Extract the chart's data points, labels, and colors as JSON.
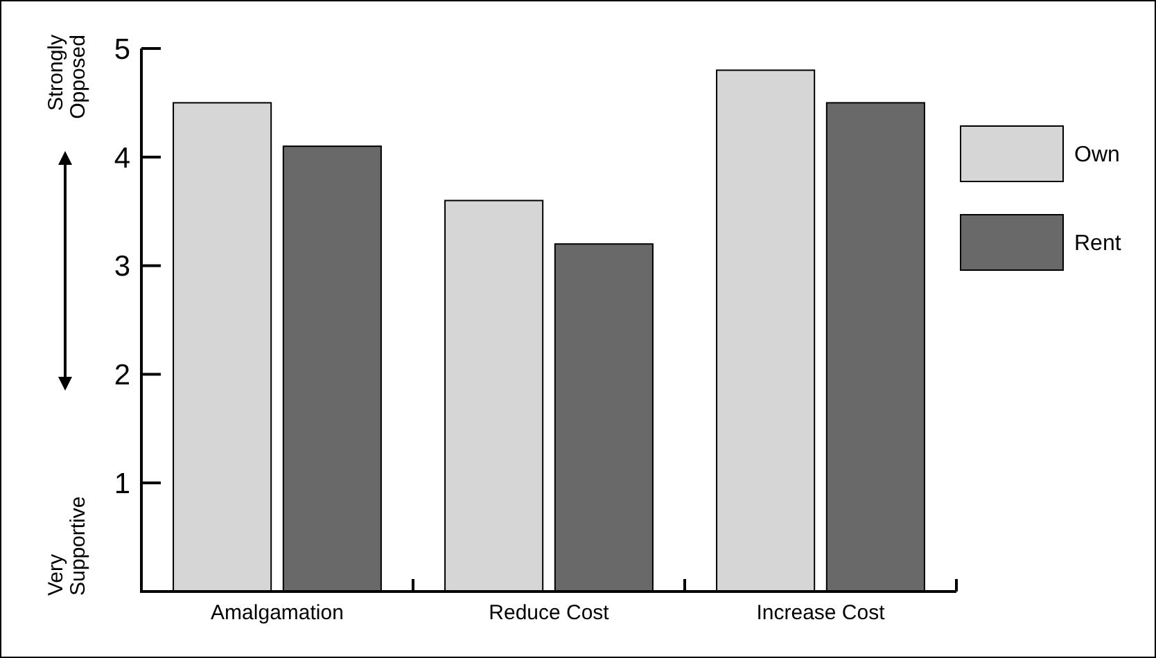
{
  "chart_data": {
    "type": "bar",
    "categories": [
      "Amalgamation",
      "Reduce Cost",
      "Increase Cost"
    ],
    "series": [
      {
        "name": "Own",
        "color": "#d6d6d6",
        "values": [
          4.5,
          3.6,
          4.8
        ]
      },
      {
        "name": "Rent",
        "color": "#696969",
        "values": [
          4.1,
          3.2,
          4.5
        ]
      }
    ],
    "ylim": [
      0,
      5
    ],
    "yticks": [
      1,
      2,
      3,
      4,
      5
    ],
    "grid": false,
    "legend": "right",
    "annotations": [
      "Strongly\nOpposed",
      "Very\nSupportive"
    ]
  }
}
